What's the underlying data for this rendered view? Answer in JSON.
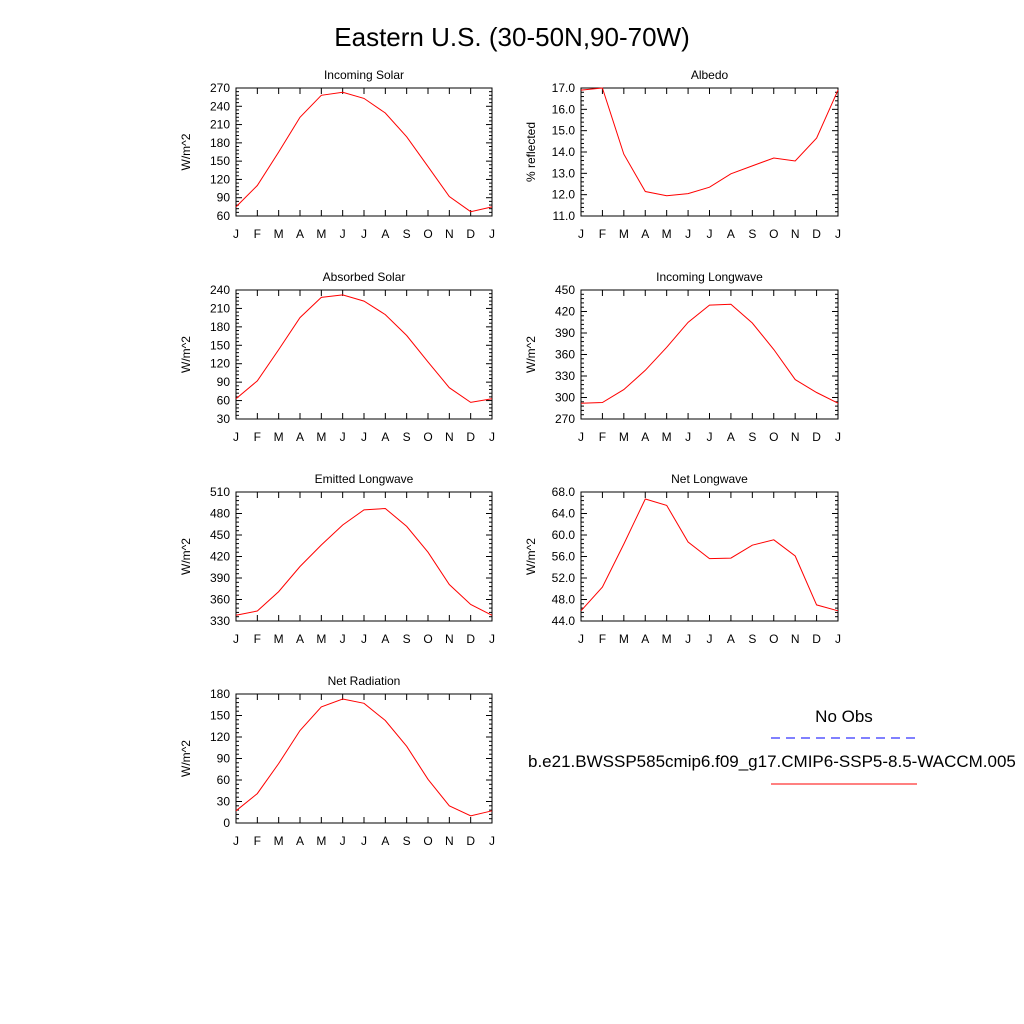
{
  "page": {
    "title": "Eastern U.S. (30-50N,90-70W)"
  },
  "legend": {
    "entries": [
      {
        "label": "No Obs",
        "color": "#0000ff",
        "style": "dashed"
      },
      {
        "label": "b.e21.BWSSP585cmip6.f09_g17.CMIP6-SSP5-8.5-WACCM.005",
        "color": "#ff0000",
        "style": "solid"
      }
    ]
  },
  "chart_data": [
    {
      "type": "line",
      "title": "Incoming Solar",
      "ylabel": "W/m^2",
      "categories": [
        "J",
        "F",
        "M",
        "A",
        "M",
        "J",
        "J",
        "A",
        "S",
        "O",
        "N",
        "D",
        "J"
      ],
      "ylim": [
        60,
        270
      ],
      "yticks": [
        "60",
        "90",
        "120",
        "150",
        "180",
        "210",
        "240",
        "270"
      ],
      "series": [
        {
          "color": "#ff0000",
          "values": [
            75,
            110,
            165,
            222,
            258,
            263,
            253,
            229,
            190,
            141,
            92,
            67,
            75
          ]
        }
      ]
    },
    {
      "type": "line",
      "title": "Albedo",
      "ylabel": "% reflected",
      "categories": [
        "J",
        "F",
        "M",
        "A",
        "M",
        "J",
        "J",
        "A",
        "S",
        "O",
        "N",
        "D",
        "J"
      ],
      "ylim": [
        11.0,
        17.0
      ],
      "yticks": [
        "11.0",
        "12.0",
        "13.0",
        "14.0",
        "15.0",
        "16.0",
        "17.0"
      ],
      "series": [
        {
          "color": "#ff0000",
          "values": [
            16.9,
            17.0,
            13.9,
            12.15,
            11.95,
            12.05,
            12.35,
            12.98,
            13.35,
            13.72,
            13.58,
            14.65,
            16.9
          ]
        }
      ]
    },
    {
      "type": "line",
      "title": "Absorbed Solar",
      "ylabel": "W/m^2",
      "categories": [
        "J",
        "F",
        "M",
        "A",
        "M",
        "J",
        "J",
        "A",
        "S",
        "O",
        "N",
        "D",
        "J"
      ],
      "ylim": [
        30,
        240
      ],
      "yticks": [
        "30",
        "60",
        "90",
        "120",
        "150",
        "180",
        "210",
        "240"
      ],
      "series": [
        {
          "color": "#ff0000",
          "values": [
            63,
            92,
            143,
            195,
            228,
            232,
            222,
            200,
            166,
            123,
            81,
            57,
            63
          ]
        }
      ]
    },
    {
      "type": "line",
      "title": "Incoming Longwave",
      "ylabel": "W/m^2",
      "categories": [
        "J",
        "F",
        "M",
        "A",
        "M",
        "J",
        "J",
        "A",
        "S",
        "O",
        "N",
        "D",
        "J"
      ],
      "ylim": [
        270,
        450
      ],
      "yticks": [
        "270",
        "300",
        "330",
        "360",
        "390",
        "420",
        "450"
      ],
      "series": [
        {
          "color": "#ff0000",
          "values": [
            292,
            293,
            311,
            338,
            370,
            405,
            429,
            430,
            404,
            367,
            325,
            307,
            292
          ]
        }
      ]
    },
    {
      "type": "line",
      "title": "Emitted Longwave",
      "ylabel": "W/m^2",
      "categories": [
        "J",
        "F",
        "M",
        "A",
        "M",
        "J",
        "J",
        "A",
        "S",
        "O",
        "N",
        "D",
        "J"
      ],
      "ylim": [
        330,
        510
      ],
      "yticks": [
        "330",
        "360",
        "390",
        "420",
        "450",
        "480",
        "510"
      ],
      "series": [
        {
          "color": "#ff0000",
          "values": [
            338,
            344,
            371,
            406,
            436,
            464,
            485,
            487,
            462,
            426,
            381,
            353,
            338
          ]
        }
      ]
    },
    {
      "type": "line",
      "title": "Net Longwave",
      "ylabel": "W/m^2",
      "categories": [
        "J",
        "F",
        "M",
        "A",
        "M",
        "J",
        "J",
        "A",
        "S",
        "O",
        "N",
        "D",
        "J"
      ],
      "ylim": [
        44.0,
        68.0
      ],
      "yticks": [
        "44.0",
        "48.0",
        "52.0",
        "56.0",
        "60.0",
        "64.0",
        "68.0"
      ],
      "series": [
        {
          "color": "#ff0000",
          "values": [
            45.9,
            50.3,
            58.3,
            66.7,
            65.5,
            58.7,
            55.6,
            55.7,
            58.1,
            59.1,
            56.1,
            47.0,
            45.9
          ]
        }
      ]
    },
    {
      "type": "line",
      "title": "Net Radiation",
      "ylabel": "W/m^2",
      "categories": [
        "J",
        "F",
        "M",
        "A",
        "M",
        "J",
        "J",
        "A",
        "S",
        "O",
        "N",
        "D",
        "J"
      ],
      "ylim": [
        0,
        180
      ],
      "yticks": [
        "0",
        "30",
        "60",
        "90",
        "120",
        "150",
        "180"
      ],
      "series": [
        {
          "color": "#ff0000",
          "values": [
            17,
            41,
            83,
            129,
            162,
            173,
            167,
            143,
            107,
            61,
            24,
            10,
            17
          ]
        }
      ]
    }
  ]
}
